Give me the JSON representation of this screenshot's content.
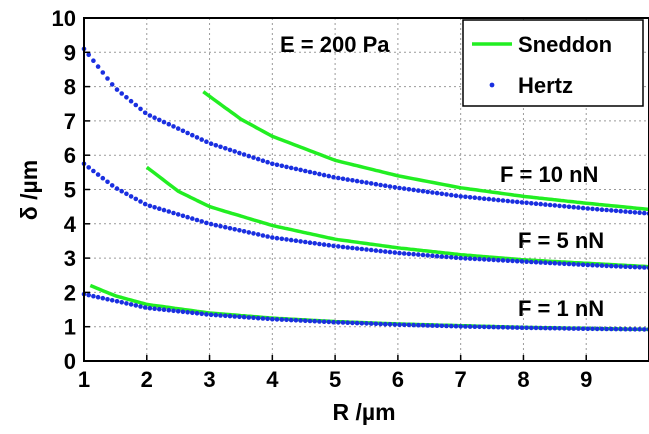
{
  "chart_data": {
    "type": "line",
    "xlabel": "R /µm",
    "ylabel": "δ /µm",
    "xlim": [
      1,
      10
    ],
    "ylim": [
      0,
      10
    ],
    "x_ticks": [
      "1",
      "2",
      "3",
      "4",
      "5",
      "6",
      "7",
      "8",
      "9"
    ],
    "y_ticks": [
      "0",
      "1",
      "2",
      "3",
      "4",
      "5",
      "6",
      "7",
      "8",
      "9",
      "10"
    ],
    "grid": true,
    "legend_position": "top-right",
    "legend": [
      {
        "label": "Sneddon",
        "style": "solid line",
        "color": "#22ee22"
      },
      {
        "label": "Hertz",
        "style": "dotted",
        "color": "#1a2fe0"
      }
    ],
    "annotations": {
      "modulus": "E = 200 Pa",
      "f10": "F = 10 nN",
      "f5": "F = 5 nN",
      "f1": "F = 1 nN"
    },
    "series": [
      {
        "name": "Sneddon",
        "group": "F = 10 nN",
        "x": [
          2.9,
          3.5,
          4,
          5,
          6,
          7,
          8,
          9,
          10
        ],
        "y": [
          7.85,
          7.05,
          6.55,
          5.85,
          5.4,
          5.05,
          4.8,
          4.6,
          4.42
        ]
      },
      {
        "name": "Hertz",
        "group": "F = 10 nN",
        "x": [
          1,
          1.5,
          2,
          3,
          4,
          5,
          6,
          7,
          8,
          9,
          10
        ],
        "y": [
          9.1,
          7.95,
          7.2,
          6.35,
          5.75,
          5.35,
          5.05,
          4.8,
          4.62,
          4.45,
          4.3
        ]
      },
      {
        "name": "Sneddon",
        "group": "F = 5 nN",
        "x": [
          2,
          2.5,
          3,
          4,
          5,
          6,
          7,
          8,
          9,
          10
        ],
        "y": [
          5.65,
          4.95,
          4.5,
          3.95,
          3.55,
          3.3,
          3.1,
          2.95,
          2.85,
          2.75
        ]
      },
      {
        "name": "Hertz",
        "group": "F = 5 nN",
        "x": [
          1,
          1.5,
          2,
          3,
          4,
          5,
          6,
          7,
          8,
          9,
          10
        ],
        "y": [
          5.75,
          5.05,
          4.55,
          4.0,
          3.6,
          3.35,
          3.15,
          3.0,
          2.9,
          2.8,
          2.72
        ]
      },
      {
        "name": "Sneddon",
        "group": "F = 1 nN",
        "x": [
          1.1,
          1.5,
          2,
          3,
          4,
          5,
          6,
          7,
          8,
          9,
          10
        ],
        "y": [
          2.2,
          1.9,
          1.65,
          1.4,
          1.25,
          1.15,
          1.08,
          1.03,
          0.98,
          0.95,
          0.92
        ]
      },
      {
        "name": "Hertz",
        "group": "F = 1 nN",
        "x": [
          1,
          1.5,
          2,
          3,
          4,
          5,
          6,
          7,
          8,
          9,
          10
        ],
        "y": [
          1.95,
          1.75,
          1.55,
          1.35,
          1.22,
          1.13,
          1.06,
          1.01,
          0.97,
          0.94,
          0.92
        ]
      }
    ]
  }
}
